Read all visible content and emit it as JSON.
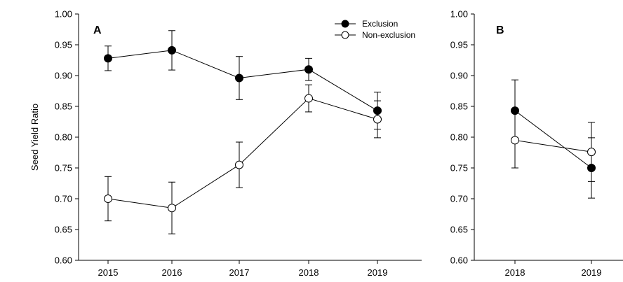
{
  "y_axis_label": "Seed Yield Ratio",
  "legend": {
    "placement": "top-right of panel A",
    "items": [
      {
        "name": "Exclusion",
        "marker": "filled-circle"
      },
      {
        "name": "Non-exclusion",
        "marker": "open-circle"
      }
    ]
  },
  "chart_data": [
    {
      "type": "line",
      "panel_label": "A",
      "title": "",
      "xlabel": "",
      "ylabel": "Seed Yield Ratio",
      "ylim": [
        0.6,
        1.0
      ],
      "yticks": [
        "0.60",
        "0.65",
        "0.70",
        "0.75",
        "0.80",
        "0.85",
        "0.90",
        "0.95",
        "1.00"
      ],
      "x": [
        "2015",
        "2016",
        "2017",
        "2018",
        "2019"
      ],
      "grid": false,
      "series": [
        {
          "name": "Exclusion",
          "marker": "filled",
          "values": [
            0.928,
            0.941,
            0.896,
            0.91,
            0.843
          ],
          "errors": [
            0.02,
            0.032,
            0.035,
            0.018,
            0.03
          ]
        },
        {
          "name": "Non-exclusion",
          "marker": "open",
          "values": [
            0.7,
            0.685,
            0.755,
            0.863,
            0.829
          ],
          "errors": [
            0.036,
            0.042,
            0.037,
            0.022,
            0.03
          ]
        }
      ]
    },
    {
      "type": "line",
      "panel_label": "B",
      "title": "",
      "xlabel": "",
      "ylabel": "",
      "ylim": [
        0.6,
        1.0
      ],
      "yticks": [
        "0.60",
        "0.65",
        "0.70",
        "0.75",
        "0.80",
        "0.85",
        "0.90",
        "0.95",
        "1.00"
      ],
      "x": [
        "2018",
        "2019"
      ],
      "grid": false,
      "series": [
        {
          "name": "Exclusion",
          "marker": "filled",
          "values": [
            0.843,
            0.75
          ],
          "errors": [
            0.05,
            0.049
          ]
        },
        {
          "name": "Non-exclusion",
          "marker": "open",
          "values": [
            0.795,
            0.776
          ],
          "errors": [
            0.045,
            0.048
          ]
        }
      ]
    }
  ]
}
